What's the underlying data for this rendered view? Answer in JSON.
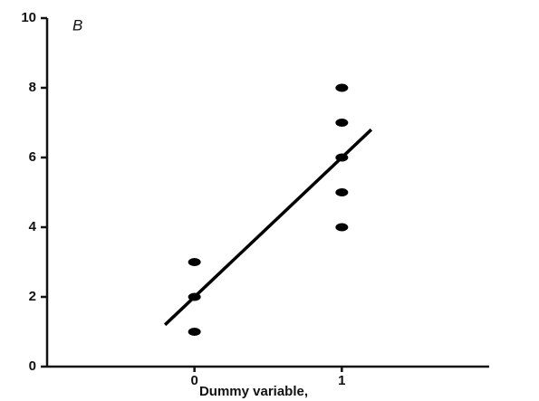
{
  "chart_data": {
    "type": "scatter",
    "title": "B",
    "x_label": "Dummy variable,",
    "series": [
      {
        "color": "#000000",
        "x": [
          0,
          0,
          0,
          1,
          1,
          1,
          1,
          1
        ],
        "values": [
          1,
          2,
          3,
          4,
          5,
          6,
          7,
          8
        ]
      }
    ],
    "fit_line": {
      "color": "#000000",
      "x": [
        -0.2,
        1.2
      ],
      "values": [
        1.2,
        6.8
      ]
    },
    "xlim": [
      -1,
      2
    ],
    "xticks": [
      0,
      1
    ],
    "ylim": [
      0,
      10
    ],
    "yticks": [
      0,
      2,
      4,
      6,
      8,
      10
    ],
    "grid": false
  }
}
